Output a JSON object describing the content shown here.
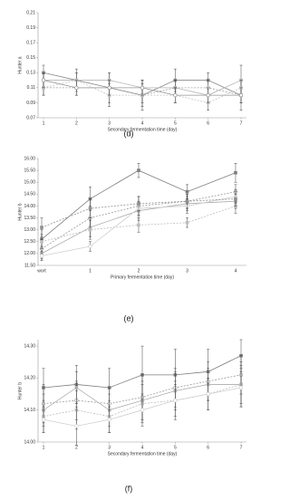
{
  "chart_data": [
    {
      "type": "line",
      "caption": "(d)",
      "ylabel": "Hunter a",
      "xlabel": "Secondary fermentation time (day)",
      "x": [
        1,
        2,
        3,
        4,
        5,
        6,
        7
      ],
      "xlim": [
        1,
        7
      ],
      "xticks": [
        1,
        2,
        3,
        4,
        5,
        6,
        7
      ],
      "ylim": [
        0.07,
        0.21
      ],
      "yticks": [
        0.07,
        0.09,
        0.11,
        0.13,
        0.15,
        0.17,
        0.19,
        0.21
      ],
      "grid": false,
      "series": [
        {
          "color": "#8a8a8a",
          "values": [
            0.13,
            0.12,
            0.11,
            0.1,
            0.12,
            0.12,
            0.1
          ],
          "errors": [
            0.01,
            0.015,
            0.02,
            0.02,
            0.015,
            0.01,
            0.02
          ]
        },
        {
          "color": "#a0a0a0",
          "values": [
            0.11,
            0.11,
            0.11,
            0.1,
            0.11,
            0.11,
            0.1
          ],
          "errors": [
            0.01,
            0.01,
            0.01,
            0.015,
            0.01,
            0.01,
            0.01
          ]
        },
        {
          "color": "#b5b5b5",
          "values": [
            0.12,
            0.12,
            0.12,
            0.11,
            0.11,
            0.1,
            0.12
          ],
          "errors": [
            0.01,
            0.01,
            0.01,
            0.01,
            0.01,
            0.01,
            0.02
          ]
        },
        {
          "color": "#c4c4c4",
          "values": [
            0.11,
            0.12,
            0.1,
            0.1,
            0.1,
            0.09,
            0.11
          ],
          "errors": [
            0.01,
            0.01,
            0.015,
            0.01,
            0.01,
            0.01,
            0.01
          ]
        },
        {
          "color": "#959595",
          "values": [
            0.12,
            0.11,
            0.11,
            0.11,
            0.1,
            0.1,
            0.1
          ],
          "errors": [
            0.01,
            0.01,
            0.01,
            0.01,
            0.01,
            0.01,
            0.01
          ]
        }
      ]
    },
    {
      "type": "line",
      "caption": "(e)",
      "ylabel": "Hunter b",
      "xlabel": "Primary fermentation time (day)",
      "categories": [
        "wort",
        "1",
        "2",
        "3",
        "4"
      ],
      "ylim": [
        11.5,
        16.0
      ],
      "yticks": [
        {
          "value": 11.5,
          "label": "11.50"
        },
        {
          "value": 12.0,
          "label": "12.00"
        },
        {
          "value": 12.5,
          "label": "12.50"
        },
        {
          "value": 13.0,
          "label": "13.00"
        },
        {
          "value": 13.5,
          "label": "13.50"
        },
        {
          "value": 14.0,
          "label": "14.00"
        },
        {
          "value": 14.5,
          "label": "14.50"
        },
        {
          "value": 15.0,
          "label": "15.00"
        },
        {
          "value": 15.5,
          "label": "15.50"
        },
        {
          "value": 16.0,
          "label": "16.00"
        }
      ],
      "grid": false,
      "series": [
        {
          "color": "#7d7d7d",
          "values": [
            12.6,
            14.3,
            15.5,
            14.6,
            15.4
          ],
          "errors": [
            0.4,
            0.5,
            0.3,
            0.3,
            0.4
          ]
        },
        {
          "color": "#999999",
          "values": [
            12.2,
            13.5,
            14.0,
            14.2,
            14.6
          ],
          "errors": [
            0.4,
            0.5,
            0.4,
            0.3,
            0.3
          ]
        },
        {
          "color": "#adadad",
          "values": [
            12.0,
            13.1,
            13.8,
            14.1,
            14.2
          ],
          "errors": [
            0.3,
            0.4,
            0.4,
            0.3,
            0.3
          ]
        },
        {
          "color": "#bdbdbd",
          "values": [
            12.5,
            13.0,
            13.2,
            13.3,
            14.0
          ],
          "errors": [
            0.3,
            0.4,
            0.3,
            0.2,
            0.3
          ]
        },
        {
          "color": "#cfcfcf",
          "values": [
            11.9,
            12.3,
            13.9,
            14.0,
            14.4
          ],
          "errors": [
            0.2,
            0.2,
            0.3,
            0.3,
            0.3
          ]
        },
        {
          "color": "#8f8f8f",
          "values": [
            13.1,
            13.9,
            14.1,
            14.2,
            14.3
          ],
          "errors": [
            0.4,
            0.4,
            0.3,
            0.3,
            0.3
          ]
        }
      ]
    },
    {
      "type": "line",
      "caption": "(f)",
      "ylabel": "Hunter b",
      "xlabel": "Secondary fermentation time (day)",
      "x": [
        1,
        2,
        3,
        4,
        5,
        6,
        7
      ],
      "xlim": [
        1,
        7
      ],
      "xticks": [
        1,
        2,
        3,
        4,
        5,
        6,
        7
      ],
      "ylim": [
        14.0,
        14.32
      ],
      "yticks": [
        {
          "value": 14.0,
          "label": "14.00"
        },
        {
          "value": 14.1,
          "label": "14.10"
        },
        {
          "value": 14.2,
          "label": "14.20"
        },
        {
          "value": 14.3,
          "label": "14.30"
        }
      ],
      "grid": false,
      "series": [
        {
          "color": "#7d7d7d",
          "values": [
            14.17,
            14.18,
            14.17,
            14.21,
            14.21,
            14.22,
            14.27
          ],
          "errors": [
            0.06,
            0.06,
            0.06,
            0.09,
            0.08,
            0.07,
            0.05
          ]
        },
        {
          "color": "#999999",
          "values": [
            14.12,
            14.13,
            14.12,
            14.14,
            14.17,
            14.19,
            14.21
          ],
          "errors": [
            0.06,
            0.06,
            0.05,
            0.07,
            0.06,
            0.06,
            0.06
          ]
        },
        {
          "color": "#adadad",
          "values": [
            14.1,
            14.17,
            14.1,
            14.13,
            14.16,
            14.18,
            14.18
          ],
          "errors": [
            0.05,
            0.05,
            0.05,
            0.06,
            0.06,
            0.05,
            0.06
          ]
        },
        {
          "color": "#bdbdbd",
          "values": [
            14.08,
            14.1,
            14.08,
            14.12,
            14.13,
            14.15,
            14.18
          ],
          "errors": [
            0.05,
            0.06,
            0.05,
            0.06,
            0.06,
            0.05,
            0.07
          ]
        },
        {
          "color": "#cfcfcf",
          "values": [
            14.07,
            14.05,
            14.07,
            14.1,
            14.13,
            14.15,
            14.17
          ],
          "errors": [
            0.04,
            0.06,
            0.04,
            0.05,
            0.05,
            0.05,
            0.06
          ]
        }
      ]
    }
  ]
}
